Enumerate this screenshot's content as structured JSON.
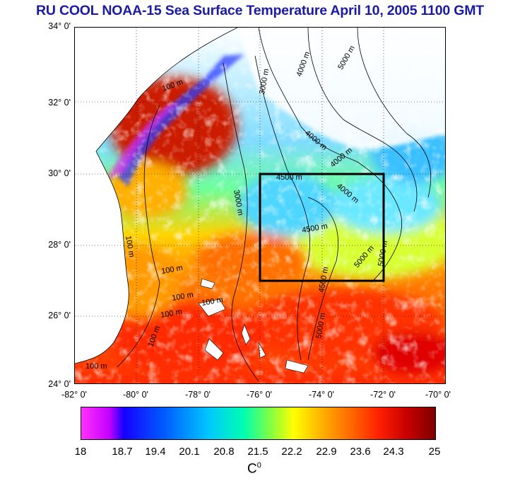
{
  "title": "RU COOL  NOAA-15 Sea Surface Temperature April 10, 2005 1100 GMT",
  "lat_labels": [
    "34° 0'",
    "32° 0'",
    "30° 0'",
    "28° 0'",
    "26° 0'",
    "24° 0'"
  ],
  "lon_labels": [
    "-82° 0'",
    "-80° 0'",
    "-78° 0'",
    "-76° 0'",
    "-74° 0'",
    "-72° 0'",
    "-70° 0'"
  ],
  "depth_labels": [
    "100 m",
    "100 m",
    "100 m",
    "100 m",
    "100 m",
    "100 m",
    "100 m",
    "100 m",
    "3000 m",
    "3000 m",
    "4000 m",
    "4000 m",
    "4000 m",
    "4000 m",
    "4500 m",
    "4500 m",
    "4500 m",
    "5000 m",
    "5000 m",
    "5000 m",
    "5000 m"
  ],
  "colorbar": {
    "ticks": [
      "18",
      "18.7",
      "19.4",
      "20.1",
      "20.8",
      "21.5",
      "22.2",
      "22.9",
      "23.6",
      "24.3",
      "25"
    ],
    "unit_base": "C",
    "unit_sup": "0"
  },
  "colors": {
    "title": "#1a1aa6",
    "land": "#ffffff",
    "box": "#000000"
  }
}
